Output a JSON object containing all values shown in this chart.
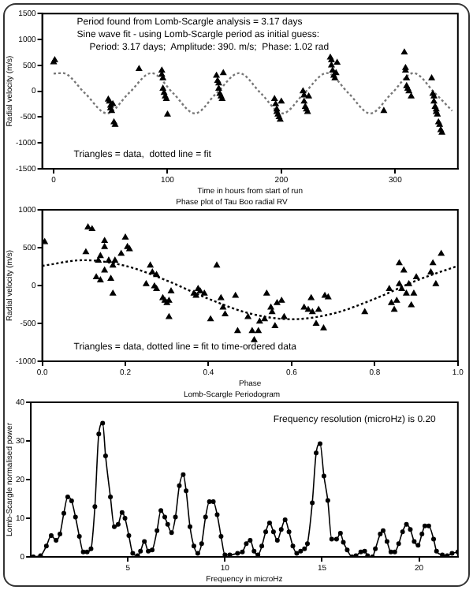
{
  "chart_data": [
    {
      "type": "scatter",
      "xlabel": "Time in hours from start of run",
      "ylabel": "Radial velocity (m/s)",
      "annotations": [
        "Period found from Lomb-Scargle analysis = 3.17 days",
        "Sine wave fit - using Lomb-Scargle period as initial guess:",
        "Period: 3.17 days;  Amplitude: 390. m/s;  Phase: 1.02 rad",
        "Triangles = data,  dotted line = fit"
      ],
      "xlim": [
        -10,
        355
      ],
      "xticks": [
        0,
        100,
        200,
        300
      ],
      "ylim": [
        -1500,
        1500
      ],
      "yticks": [
        -1500,
        -1000,
        -500,
        0,
        500,
        1000,
        1500
      ],
      "line_style": "dotted",
      "legend": false,
      "series": [
        {
          "color": "#000000",
          "marker": "triangle",
          "x": [
            0,
            1,
            48,
            49,
            50,
            50,
            51,
            52,
            53,
            54,
            75,
            95,
            95,
            96,
            96,
            97,
            98,
            99,
            100,
            143,
            144,
            145,
            145,
            146,
            147,
            148,
            149,
            194,
            195,
            196,
            196,
            197,
            198,
            199,
            200,
            219,
            220,
            220,
            221,
            222,
            223,
            224,
            243,
            244,
            244,
            245,
            246,
            247,
            248,
            249,
            290,
            308,
            309,
            309,
            310,
            310,
            311,
            312,
            314,
            332,
            333,
            334,
            334,
            335,
            336,
            336,
            337,
            338,
            339,
            340,
            341
          ],
          "values": [
            560,
            600,
            -160,
            -200,
            -280,
            -330,
            -380,
            -250,
            -600,
            -650,
            430,
            400,
            320,
            250,
            50,
            -30,
            -100,
            -150,
            -450,
            300,
            200,
            150,
            50,
            -50,
            -100,
            -150,
            350,
            -150,
            -250,
            -350,
            -400,
            -450,
            -500,
            -550,
            -200,
            0,
            -80,
            -200,
            -300,
            -350,
            -400,
            -100,
            650,
            600,
            500,
            400,
            300,
            250,
            350,
            550,
            -380,
            750,
            450,
            400,
            250,
            100,
            50,
            0,
            -100,
            250,
            -50,
            -100,
            -200,
            -300,
            -350,
            -400,
            -450,
            -600,
            -650,
            -750,
            -800
          ]
        },
        {
          "type": "line",
          "marker": "none",
          "color": "#777777",
          "x": [
            0,
            8,
            27.5,
            47,
            66,
            86,
            105,
            124,
            143,
            163,
            182,
            201,
            220,
            240,
            259,
            278,
            297,
            316,
            335,
            350
          ],
          "values": [
            340,
            350,
            -40,
            -430,
            -40,
            350,
            -40,
            -430,
            -40,
            350,
            -40,
            -430,
            -40,
            350,
            -40,
            -430,
            -40,
            350,
            -40,
            -380
          ]
        }
      ]
    },
    {
      "type": "scatter",
      "title": "Phase plot of Tau Boo radial RV",
      "xlabel": "Phase",
      "ylabel": "Radial velocity (m/s)",
      "annotations": [
        "Triangles = data, dotted line = fit to time-ordered data"
      ],
      "xlim": [
        0,
        1
      ],
      "xticks": [
        {
          "value": 0,
          "label": "0.0"
        },
        {
          "value": 0.2,
          "label": "0.2"
        },
        {
          "value": 0.4,
          "label": "0.4"
        },
        {
          "value": 0.6,
          "label": "0.6"
        },
        {
          "value": 0.8,
          "label": "0.8"
        },
        {
          "value": 1,
          "label": "1.0"
        }
      ],
      "ylim": [
        -1000,
        1000
      ],
      "yticks": [
        -1000,
        -500,
        0,
        500,
        1000
      ],
      "line_style": "dotted",
      "legend": false,
      "series": [
        {
          "color": "#000000",
          "marker": "triangle",
          "x": [
            0.006,
            0.11,
            0.12,
            0.105,
            0.15,
            0.15,
            0.14,
            0.135,
            0.16,
            0.15,
            0.13,
            0.165,
            0.14,
            0.17,
            0.175,
            0.17,
            0.19,
            0.2,
            0.205,
            0.21,
            0.26,
            0.265,
            0.25,
            0.27,
            0.275,
            0.29,
            0.295,
            0.3,
            0.305,
            0.31,
            0.305,
            0.275,
            0.365,
            0.37,
            0.375,
            0.38,
            0.39,
            0.42,
            0.405,
            0.43,
            0.435,
            0.44,
            0.465,
            0.47,
            0.495,
            0.505,
            0.51,
            0.52,
            0.523,
            0.535,
            0.55,
            0.54,
            0.553,
            0.56,
            0.565,
            0.576,
            0.582,
            0.63,
            0.64,
            0.647,
            0.65,
            0.659,
            0.665,
            0.677,
            0.68,
            0.688,
            0.776,
            0.835,
            0.84,
            0.847,
            0.853,
            0.859,
            0.859,
            0.865,
            0.87,
            0.876,
            0.882,
            0.888,
            0.894,
            0.9,
            0.935,
            0.94,
            0.947,
            0.96
          ],
          "values": [
            575,
            770,
            745,
            440,
            590,
            510,
            390,
            330,
            330,
            200,
            110,
            90,
            70,
            265,
            330,
            -105,
            420,
            635,
            510,
            480,
            265,
            175,
            20,
            -10,
            -45,
            -165,
            -200,
            -230,
            -200,
            -75,
            -415,
            140,
            -105,
            -135,
            -45,
            -75,
            -105,
            265,
            -445,
            -165,
            -290,
            -380,
            -135,
            -600,
            -415,
            -600,
            -720,
            -600,
            -475,
            -445,
            -290,
            -105,
            -350,
            -535,
            -230,
            -200,
            -415,
            -290,
            -320,
            -165,
            -350,
            -505,
            -320,
            -565,
            -135,
            -155,
            -350,
            -45,
            -230,
            -320,
            -200,
            20,
            295,
            -45,
            200,
            -105,
            20,
            -260,
            -105,
            110,
            175,
            295,
            20,
            420
          ]
        },
        {
          "type": "line",
          "marker": "none",
          "color": "#000000",
          "x": [
            0,
            0.1,
            0.2,
            0.3,
            0.4,
            0.5,
            0.6,
            0.7,
            0.8,
            0.9,
            1
          ],
          "values": [
            260,
            335,
            260,
            65,
            -175,
            -370,
            -445,
            -370,
            -175,
            65,
            260
          ]
        }
      ]
    },
    {
      "type": "line",
      "title": "Lomb-Scargle Periodogram",
      "xlabel": "Frequency in microHz",
      "ylabel": "Lomb-Scargle normalised power",
      "annotations": [
        "Frequency resolution (microHz) is 0.20"
      ],
      "xlim": [
        0,
        22
      ],
      "xticks": [
        5,
        10,
        15,
        20
      ],
      "ylim": [
        0,
        40
      ],
      "yticks": [
        0,
        10,
        20,
        30,
        40
      ],
      "marker": "circle",
      "legend": false,
      "series": [
        {
          "color": "#000000",
          "x": [
            0.13,
            0.5,
            0.8,
            1.05,
            1.3,
            1.5,
            1.7,
            1.9,
            2.1,
            2.3,
            2.5,
            2.7,
            2.9,
            3.1,
            3.3,
            3.5,
            3.7,
            3.85,
            4.1,
            4.3,
            4.5,
            4.7,
            4.85,
            5.05,
            5.25,
            5.5,
            5.65,
            5.85,
            6.05,
            6.25,
            6.5,
            6.7,
            6.9,
            7.05,
            7.25,
            7.45,
            7.65,
            7.85,
            8.0,
            8.2,
            8.4,
            8.6,
            8.8,
            9.0,
            9.2,
            9.4,
            9.6,
            9.8,
            10,
            10.25,
            10.65,
            10.9,
            11.1,
            11.3,
            11.5,
            11.7,
            11.9,
            12.1,
            12.3,
            12.5,
            12.7,
            12.9,
            13.1,
            13.3,
            13.5,
            13.7,
            13.9,
            14.1,
            14.25,
            14.5,
            14.7,
            14.9,
            15.1,
            15.3,
            15.5,
            15.75,
            15.95,
            16.1,
            16.3,
            16.55,
            16.75,
            17,
            17.2,
            17.35,
            17.6,
            17.75,
            18,
            18.15,
            18.35,
            18.55,
            18.75,
            18.95,
            19.15,
            19.35,
            19.55,
            19.75,
            19.95,
            20.15,
            20.3,
            20.5,
            20.75,
            20.9,
            21.2,
            21.45,
            21.7,
            22
          ],
          "values": [
            0,
            0.3,
            2.8,
            5.5,
            4.3,
            5.9,
            11.3,
            15.5,
            14.5,
            10.3,
            5.3,
            1.3,
            1.3,
            2.1,
            13,
            31.8,
            34.6,
            26.1,
            15.5,
            7.8,
            8.4,
            11.5,
            10,
            5.5,
            0.9,
            0.3,
            1.5,
            4,
            1.5,
            1.8,
            6.8,
            12,
            10.3,
            8.4,
            6.3,
            10.3,
            18.4,
            21.3,
            17.1,
            7.8,
            2.8,
            0.9,
            3.4,
            10.3,
            14.3,
            14.3,
            10.9,
            5.3,
            0.5,
            0.5,
            0.9,
            1.3,
            3.4,
            4.3,
            1.5,
            0.5,
            2.8,
            6.5,
            8.8,
            6.5,
            4.3,
            7.1,
            9.6,
            6.5,
            2.8,
            0.9,
            1.5,
            2.1,
            3.4,
            14,
            26.9,
            29.3,
            20.9,
            14.6,
            4.6,
            4.6,
            6.1,
            3.8,
            1.8,
            0,
            0.3,
            1.3,
            1.5,
            0.3,
            0,
            2.1,
            5.9,
            6.8,
            4,
            1.3,
            1.3,
            3.4,
            6.5,
            8.4,
            7.1,
            4,
            3,
            5.9,
            8,
            8,
            4.6,
            1.5,
            0.5,
            0.3,
            0.9,
            1.3
          ]
        }
      ]
    }
  ]
}
